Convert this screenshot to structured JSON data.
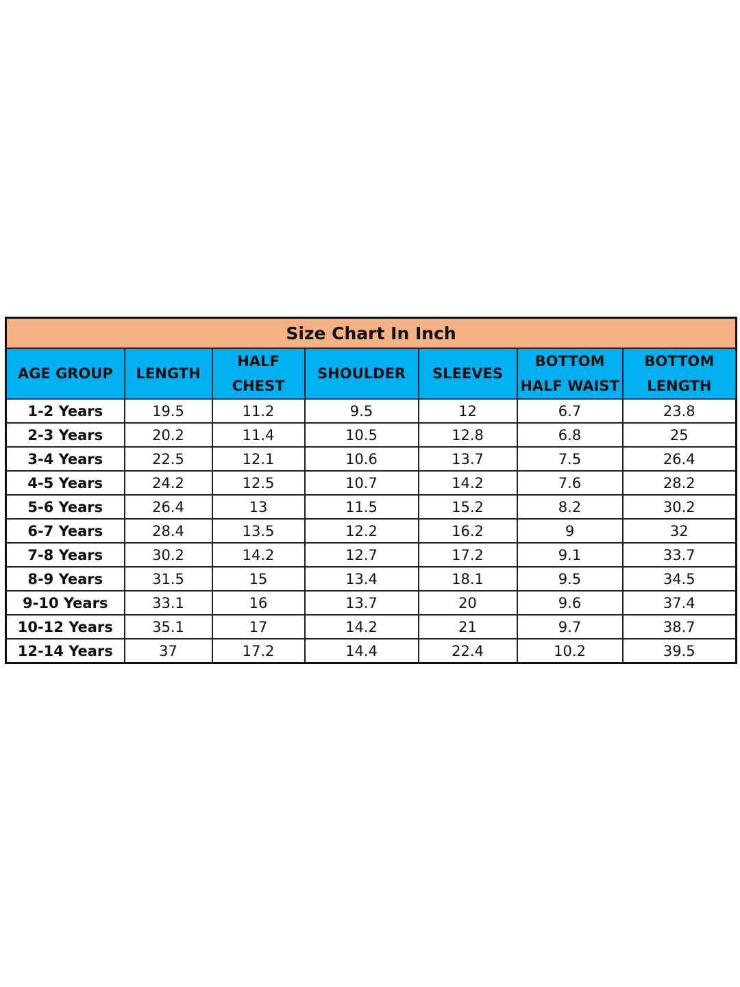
{
  "title": "Size Chart In Inch",
  "colors": {
    "title_bg": "#f4b183",
    "header_bg": "#00b0f0",
    "border": "#111111"
  },
  "headers": [
    "AGE GROUP",
    "LENGTH",
    "HALF\nCHEST",
    "SHOULDER",
    "SLEEVES",
    "BOTTOM\nHALF WAIST",
    "BOTTOM\nLENGTH"
  ],
  "rows": [
    [
      "1-2 Years",
      "19.5",
      "11.2",
      "9.5",
      "12",
      "6.7",
      "23.8"
    ],
    [
      "2-3 Years",
      "20.2",
      "11.4",
      "10.5",
      "12.8",
      "6.8",
      "25"
    ],
    [
      "3-4 Years",
      "22.5",
      "12.1",
      "10.6",
      "13.7",
      "7.5",
      "26.4"
    ],
    [
      "4-5 Years",
      "24.2",
      "12.5",
      "10.7",
      "14.2",
      "7.6",
      "28.2"
    ],
    [
      "5-6 Years",
      "26.4",
      "13",
      "11.5",
      "15.2",
      "8.2",
      "30.2"
    ],
    [
      "6-7 Years",
      "28.4",
      "13.5",
      "12.2",
      "16.2",
      "9",
      "32"
    ],
    [
      "7-8 Years",
      "30.2",
      "14.2",
      "12.7",
      "17.2",
      "9.1",
      "33.7"
    ],
    [
      "8-9 Years",
      "31.5",
      "15",
      "13.4",
      "18.1",
      "9.5",
      "34.5"
    ],
    [
      "9-10 Years",
      "33.1",
      "16",
      "13.7",
      "20",
      "9.6",
      "37.4"
    ],
    [
      "10-12 Years",
      "35.1",
      "17",
      "14.2",
      "21",
      "9.7",
      "38.7"
    ],
    [
      "12-14 Years",
      "37",
      "17.2",
      "14.4",
      "22.4",
      "10.2",
      "39.5"
    ]
  ]
}
